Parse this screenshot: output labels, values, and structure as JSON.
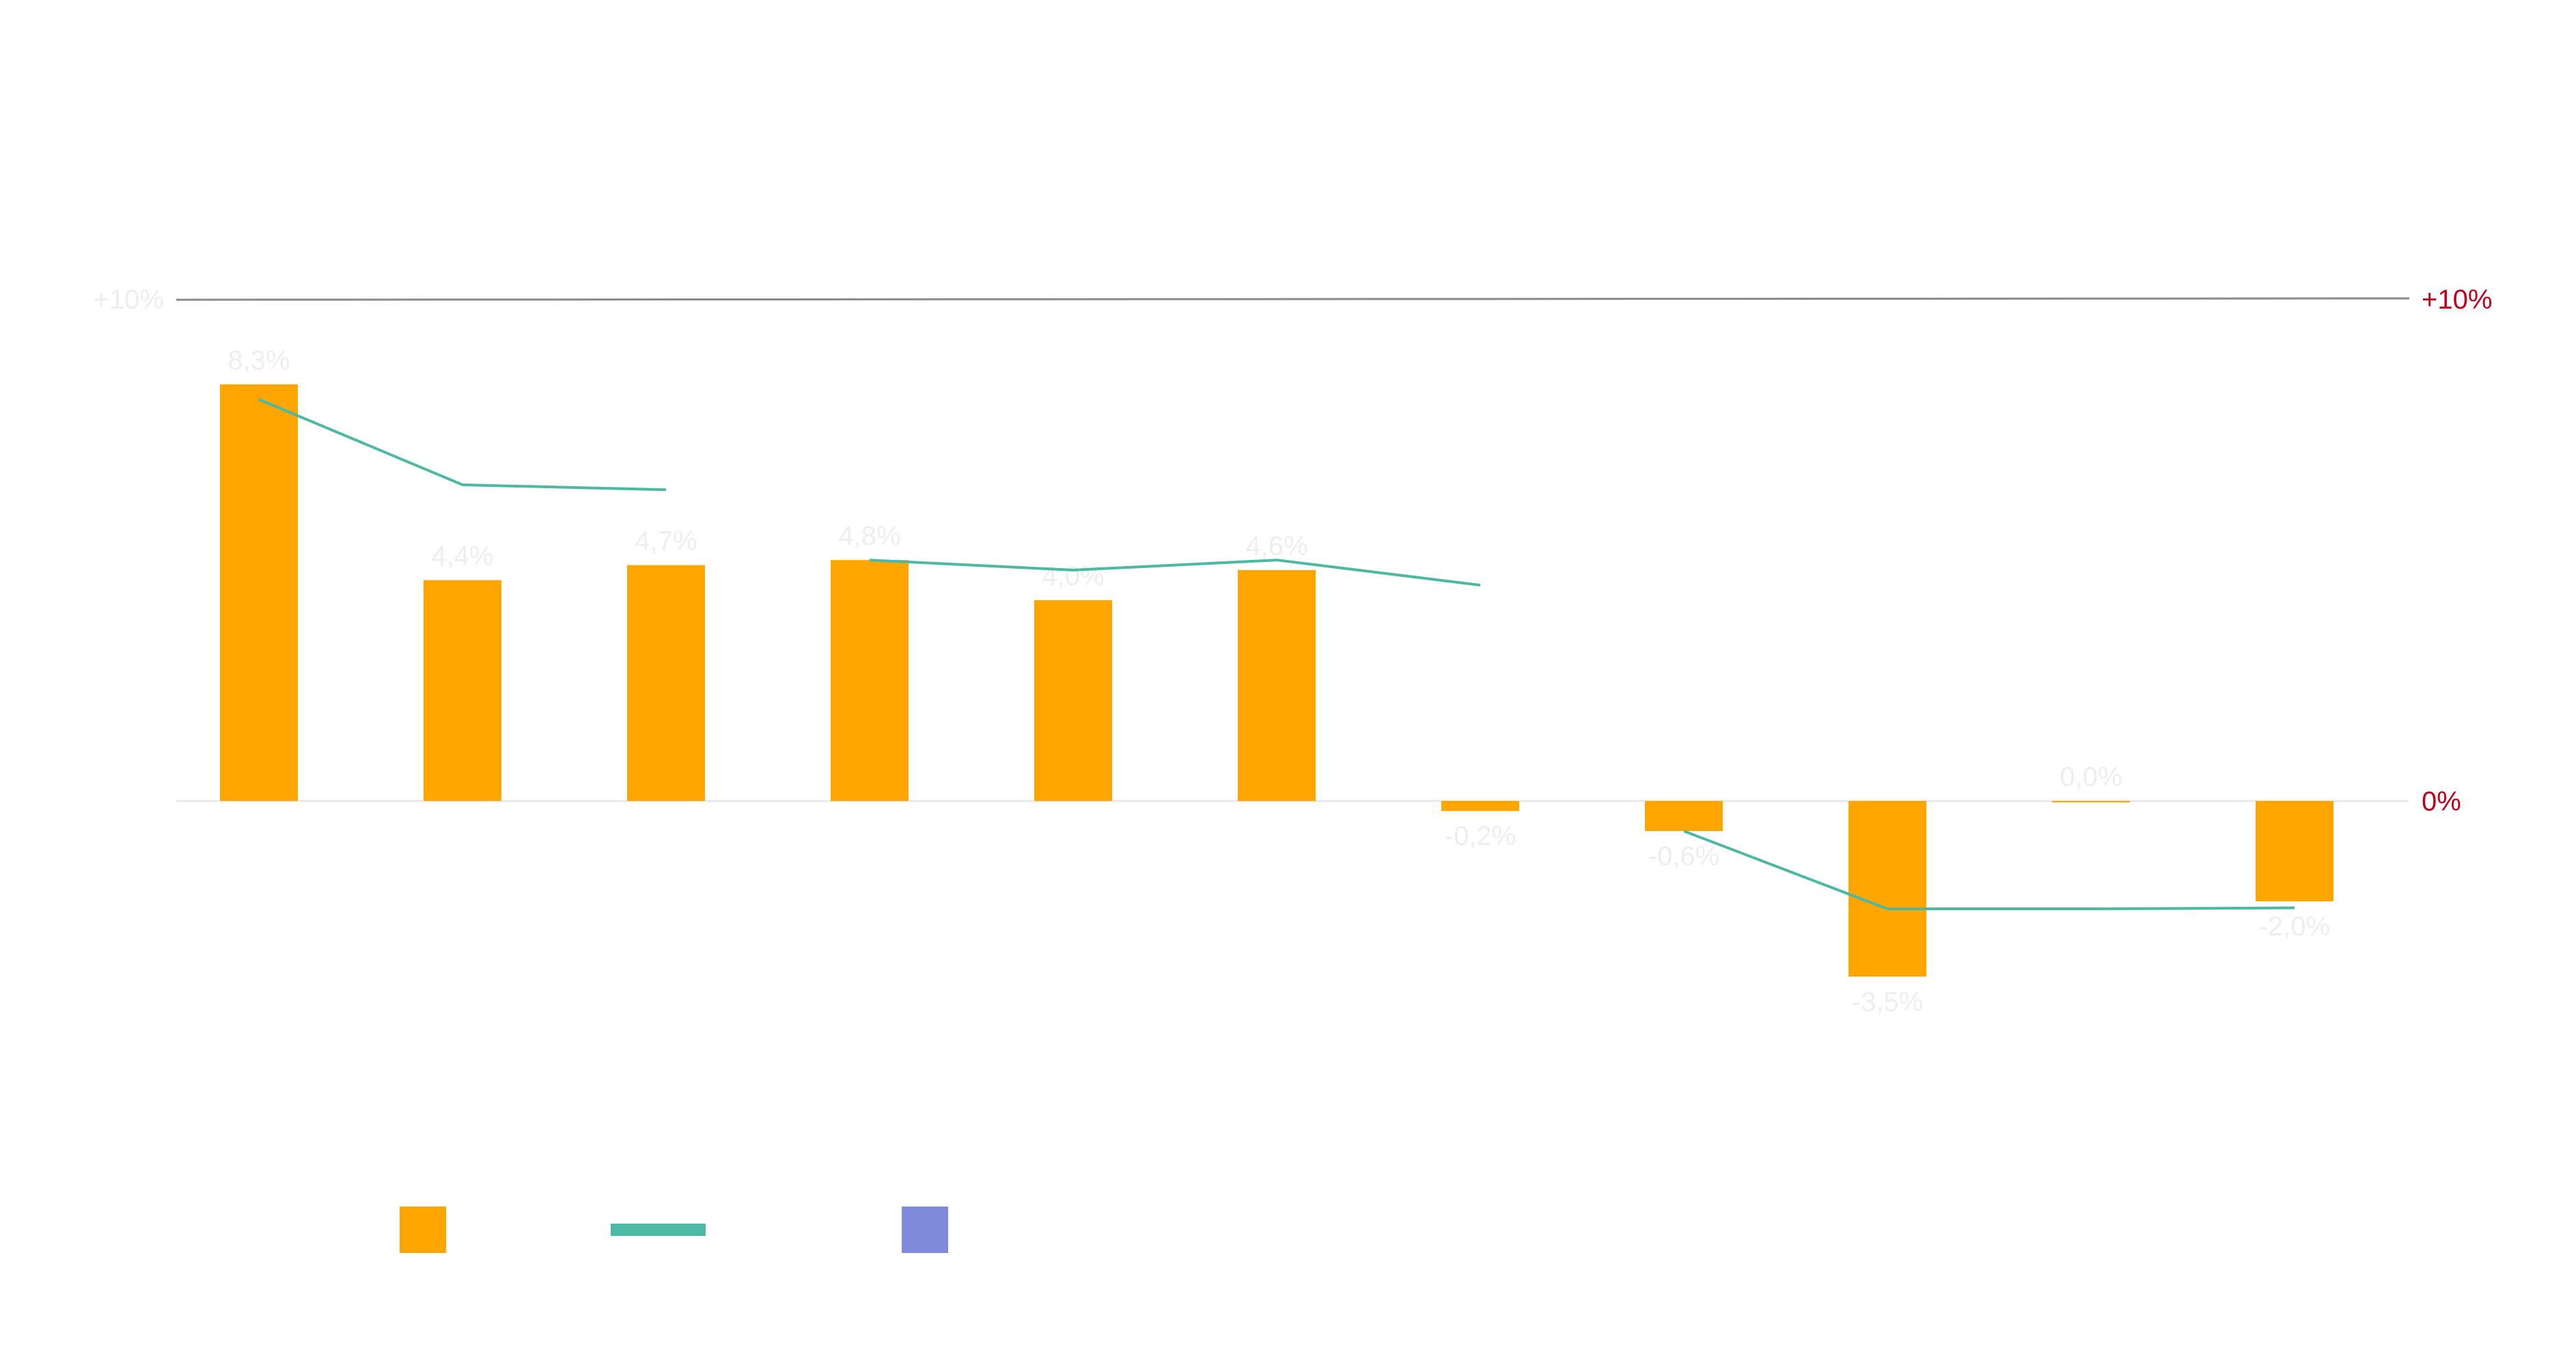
{
  "chart_data": {
    "type": "bar",
    "title": "",
    "xlabel": "",
    "ylabel": "",
    "ylim": [
      -10,
      10
    ],
    "left_axis_ticks": [
      {
        "value": 10,
        "label": "+10%"
      }
    ],
    "right_axis_ticks": [
      {
        "value": 10,
        "label": "+10%"
      },
      {
        "value": 0,
        "label": "0%"
      }
    ],
    "bars": {
      "values": [
        8.3,
        4.4,
        4.7,
        4.8,
        4.0,
        4.6,
        -0.2,
        -0.6,
        -3.5,
        0.0,
        -2.0
      ],
      "labels": [
        "8,3%",
        "4,4%",
        "4,7%",
        "4,8%",
        "4,0%",
        "4,6%",
        "-0,2%",
        "-0,6%",
        "-3,5%",
        "0,0%",
        "-2,0%"
      ]
    },
    "line_segments": [
      [
        {
          "i": 0,
          "v": 8.0
        },
        {
          "i": 1,
          "v": 6.3
        },
        {
          "i": 2,
          "v": 6.2
        }
      ],
      [
        {
          "i": 3,
          "v": 4.8
        },
        {
          "i": 4,
          "v": 4.6
        },
        {
          "i": 5,
          "v": 4.8
        },
        {
          "i": 6,
          "v": 4.3
        }
      ],
      [
        {
          "i": 7,
          "v": -0.6
        },
        {
          "i": 8,
          "v": -2.15
        },
        {
          "i": 9,
          "v": -2.15
        },
        {
          "i": 10,
          "v": -2.13
        }
      ]
    ],
    "legend_placement": "bottom-left",
    "colors": {
      "bar": "#FFA500",
      "line": "#4DB8A4",
      "legend_third": "#7F8ADB",
      "target_line": "#8A8A8A",
      "zero_line": "#E8E8E8",
      "right_axis_text": "#C0001A",
      "value_label": "#EEEEEE",
      "left_axis_text": "#EEEEEE"
    }
  }
}
